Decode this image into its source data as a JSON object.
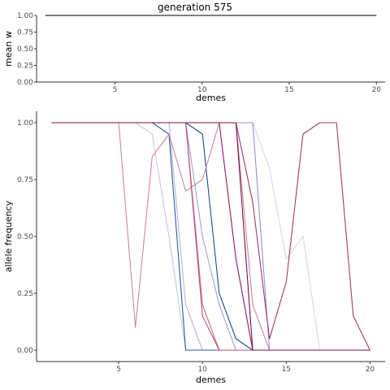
{
  "chart_data": [
    {
      "type": "line",
      "title": "generation 575",
      "xlabel": "demes",
      "ylabel": "mean w",
      "xlim": [
        0.5,
        20.5
      ],
      "ylim": [
        0,
        1
      ],
      "xticks": [
        5,
        10,
        15,
        20
      ],
      "yticks": [
        0,
        0.25,
        0.5,
        0.75,
        1
      ],
      "ytick_labels": [
        "0.00",
        "0.25",
        "0.50",
        "0.75",
        "1.00"
      ],
      "grid": false,
      "series": [
        {
          "color": "#333333",
          "x": [
            1,
            20
          ],
          "y": [
            1,
            1
          ]
        }
      ]
    },
    {
      "type": "line",
      "xlabel": "demes",
      "ylabel": "allele frequency",
      "xlim": [
        0.1,
        20.9
      ],
      "ylim": [
        -0.05,
        1.05
      ],
      "xticks": [
        5,
        10,
        15,
        20
      ],
      "yticks": [
        0,
        0.25,
        0.5,
        0.75,
        1
      ],
      "ytick_labels": [
        "0.00",
        "0.25",
        "0.50",
        "0.75",
        "1.00"
      ],
      "grid": false,
      "legend": "none",
      "series": [
        {
          "color": "#d9d9e3",
          "x": [
            1,
            2,
            3,
            4,
            5,
            6,
            7,
            8,
            9,
            10,
            11,
            12,
            13,
            14,
            15,
            16,
            17,
            18,
            19,
            20
          ],
          "y": [
            1,
            1,
            1,
            1,
            1,
            1,
            1,
            1,
            1,
            1,
            1,
            1,
            1,
            0.8,
            0.4,
            0.5,
            0,
            0,
            0,
            0
          ]
        },
        {
          "color": "#c7c9e0",
          "x": [
            1,
            2,
            3,
            4,
            5,
            6,
            7,
            8,
            9,
            10,
            11,
            12,
            13,
            14,
            15,
            16,
            17,
            18,
            19,
            20
          ],
          "y": [
            1,
            1,
            1,
            1,
            1,
            1,
            0.95,
            0.5,
            0,
            0,
            0,
            0,
            0,
            0,
            0,
            0,
            0,
            0,
            0,
            0
          ]
        },
        {
          "color": "#b3b8d8",
          "x": [
            1,
            2,
            3,
            4,
            5,
            6,
            7,
            8,
            9,
            10,
            11,
            12,
            13,
            14,
            15,
            16,
            17,
            18,
            19,
            20
          ],
          "y": [
            1,
            1,
            1,
            1,
            1,
            1,
            1,
            1,
            0.2,
            0,
            0,
            0,
            0,
            0,
            0,
            0,
            0,
            0,
            0,
            0
          ]
        },
        {
          "color": "#9da5cf",
          "x": [
            1,
            2,
            3,
            4,
            5,
            6,
            7,
            8,
            9,
            10,
            11,
            12,
            13,
            14,
            15,
            16,
            17,
            18,
            19,
            20
          ],
          "y": [
            1,
            1,
            1,
            1,
            1,
            1,
            1,
            1,
            1,
            0.5,
            0.2,
            0,
            0,
            0,
            0,
            0,
            0,
            0,
            0,
            0
          ]
        },
        {
          "color": "#8f97c7",
          "x": [
            1,
            2,
            3,
            4,
            5,
            6,
            7,
            8,
            9,
            10,
            11,
            12,
            13,
            14,
            15,
            16,
            17,
            18,
            19,
            20
          ],
          "y": [
            1,
            1,
            1,
            1,
            1,
            1,
            1,
            1,
            1,
            1,
            1,
            1,
            1,
            0,
            0,
            0,
            0,
            0,
            0,
            0
          ]
        },
        {
          "color": "#2e5c9e",
          "x": [
            1,
            2,
            3,
            4,
            5,
            6,
            7,
            8,
            9,
            10,
            11,
            12,
            13,
            14,
            15,
            16,
            17,
            18,
            19,
            20
          ],
          "y": [
            1,
            1,
            1,
            1,
            1,
            1,
            1,
            0.95,
            0,
            0,
            0,
            0,
            0,
            0,
            0,
            0,
            0,
            0,
            0,
            0
          ]
        },
        {
          "color": "#1f4a8a",
          "x": [
            1,
            2,
            3,
            4,
            5,
            6,
            7,
            8,
            9,
            10,
            11,
            12,
            13,
            14,
            15,
            16,
            17,
            18,
            19,
            20
          ],
          "y": [
            1,
            1,
            1,
            1,
            1,
            1,
            1,
            1,
            1,
            0.95,
            0.25,
            0.05,
            0,
            0,
            0,
            0,
            0,
            0,
            0,
            0
          ]
        },
        {
          "color": "#cc8899",
          "x": [
            1,
            2,
            3,
            4,
            5,
            6,
            7,
            8,
            9,
            10,
            11,
            12,
            13,
            14,
            15,
            16,
            17,
            18,
            19,
            20
          ],
          "y": [
            1,
            1,
            1,
            1,
            1,
            0.1,
            0.85,
            0.95,
            0.7,
            0.75,
            1,
            1,
            0.2,
            0,
            0,
            0,
            0,
            0,
            0,
            0
          ]
        },
        {
          "color": "#c66a8a",
          "x": [
            1,
            2,
            3,
            4,
            5,
            6,
            7,
            8,
            9,
            10,
            11,
            12,
            13,
            14,
            15,
            16,
            17,
            18,
            19,
            20
          ],
          "y": [
            1,
            1,
            1,
            1,
            1,
            1,
            1,
            1,
            1,
            0.2,
            0,
            0,
            0,
            0,
            0,
            0,
            0,
            0,
            0,
            0
          ]
        },
        {
          "color": "#b8527a",
          "x": [
            1,
            2,
            3,
            4,
            5,
            6,
            7,
            8,
            9,
            10,
            11,
            12,
            13,
            14,
            15,
            16,
            17,
            18,
            19,
            20
          ],
          "y": [
            1,
            1,
            1,
            1,
            1,
            1,
            1,
            1,
            1,
            0.15,
            0,
            0,
            0,
            0,
            0,
            0,
            0,
            0,
            0,
            0
          ]
        },
        {
          "color": "#a23a66",
          "x": [
            1,
            2,
            3,
            4,
            5,
            6,
            7,
            8,
            9,
            10,
            11,
            12,
            13,
            14,
            15,
            16,
            17,
            18,
            19,
            20
          ],
          "y": [
            1,
            1,
            1,
            1,
            1,
            1,
            1,
            1,
            1,
            1,
            1,
            1,
            0.65,
            0.05,
            0.3,
            0.95,
            1,
            1,
            0.15,
            0
          ]
        },
        {
          "color": "#8c1f55",
          "x": [
            1,
            2,
            3,
            4,
            5,
            6,
            7,
            8,
            9,
            10,
            11,
            12,
            13,
            14,
            15,
            16,
            17,
            18,
            19,
            20
          ],
          "y": [
            1,
            1,
            1,
            1,
            1,
            1,
            1,
            1,
            1,
            1,
            1,
            0.4,
            0,
            0,
            0,
            0,
            0,
            0,
            0,
            0
          ]
        },
        {
          "color": "#7a0f47",
          "x": [
            1,
            2,
            3,
            4,
            5,
            6,
            7,
            8,
            9,
            10,
            11,
            12,
            13,
            14,
            15,
            16,
            17,
            18,
            19,
            20
          ],
          "y": [
            1,
            1,
            1,
            1,
            1,
            1,
            1,
            1,
            1,
            1,
            1,
            1,
            0,
            0,
            0,
            0,
            0,
            0,
            0,
            0
          ]
        }
      ]
    }
  ]
}
